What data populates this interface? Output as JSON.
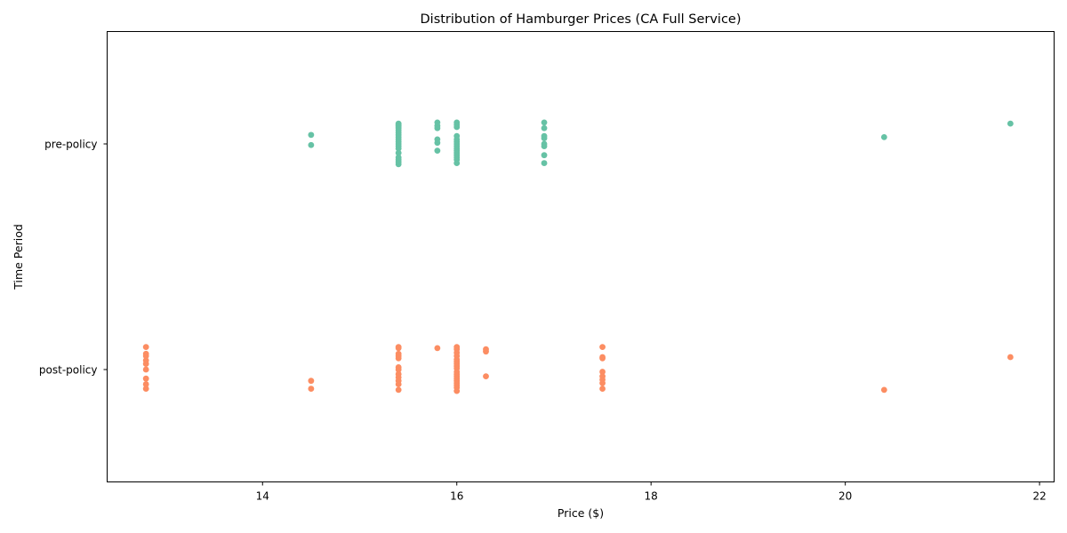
{
  "chart_data": {
    "type": "scatter",
    "title": "Distribution of Hamburger Prices (CA Full Service)",
    "xlabel": "Price ($)",
    "ylabel": "Time Period",
    "xlim": [
      12.4,
      22.15
    ],
    "xticks": [
      14,
      16,
      18,
      20,
      22
    ],
    "categories": [
      "pre-policy",
      "post-policy"
    ],
    "grid": false,
    "legend": "none",
    "series": [
      {
        "category": "pre-policy",
        "color": "#66c2a5",
        "points": [
          {
            "x": 14.5,
            "jitter": 0.04
          },
          {
            "x": 14.5,
            "jitter": -0.005
          },
          {
            "x": 15.4,
            "jitter": 0.09
          },
          {
            "x": 15.4,
            "jitter": 0.085
          },
          {
            "x": 15.4,
            "jitter": 0.08
          },
          {
            "x": 15.4,
            "jitter": 0.075
          },
          {
            "x": 15.4,
            "jitter": 0.07
          },
          {
            "x": 15.4,
            "jitter": 0.06
          },
          {
            "x": 15.4,
            "jitter": 0.05
          },
          {
            "x": 15.4,
            "jitter": 0.04
          },
          {
            "x": 15.4,
            "jitter": 0.03
          },
          {
            "x": 15.4,
            "jitter": 0.02
          },
          {
            "x": 15.4,
            "jitter": 0.01
          },
          {
            "x": 15.4,
            "jitter": 0.0
          },
          {
            "x": 15.4,
            "jitter": -0.01
          },
          {
            "x": 15.4,
            "jitter": -0.02
          },
          {
            "x": 15.4,
            "jitter": -0.04
          },
          {
            "x": 15.4,
            "jitter": -0.06
          },
          {
            "x": 15.4,
            "jitter": -0.07
          },
          {
            "x": 15.4,
            "jitter": -0.08
          },
          {
            "x": 15.4,
            "jitter": -0.09
          },
          {
            "x": 15.8,
            "jitter": 0.095
          },
          {
            "x": 15.8,
            "jitter": 0.08
          },
          {
            "x": 15.8,
            "jitter": 0.07
          },
          {
            "x": 15.8,
            "jitter": 0.02
          },
          {
            "x": 15.8,
            "jitter": 0.005
          },
          {
            "x": 15.8,
            "jitter": -0.03
          },
          {
            "x": 16.0,
            "jitter": 0.095
          },
          {
            "x": 16.0,
            "jitter": 0.085
          },
          {
            "x": 16.0,
            "jitter": 0.075
          },
          {
            "x": 16.0,
            "jitter": 0.035
          },
          {
            "x": 16.0,
            "jitter": 0.02
          },
          {
            "x": 16.0,
            "jitter": 0.01
          },
          {
            "x": 16.0,
            "jitter": 0.0
          },
          {
            "x": 16.0,
            "jitter": -0.01
          },
          {
            "x": 16.0,
            "jitter": -0.02
          },
          {
            "x": 16.0,
            "jitter": -0.03
          },
          {
            "x": 16.0,
            "jitter": -0.04
          },
          {
            "x": 16.0,
            "jitter": -0.05
          },
          {
            "x": 16.0,
            "jitter": -0.06
          },
          {
            "x": 16.0,
            "jitter": -0.07
          },
          {
            "x": 16.0,
            "jitter": -0.085
          },
          {
            "x": 16.9,
            "jitter": 0.095
          },
          {
            "x": 16.9,
            "jitter": 0.07
          },
          {
            "x": 16.9,
            "jitter": 0.035
          },
          {
            "x": 16.9,
            "jitter": 0.025
          },
          {
            "x": 16.9,
            "jitter": 0.0
          },
          {
            "x": 16.9,
            "jitter": -0.01
          },
          {
            "x": 16.9,
            "jitter": -0.05
          },
          {
            "x": 16.9,
            "jitter": -0.085
          },
          {
            "x": 20.4,
            "jitter": 0.03
          },
          {
            "x": 21.7,
            "jitter": 0.09
          }
        ]
      },
      {
        "category": "post-policy",
        "color": "#fc8d62",
        "points": [
          {
            "x": 12.8,
            "jitter": 0.1
          },
          {
            "x": 12.8,
            "jitter": 0.07
          },
          {
            "x": 12.8,
            "jitter": 0.06
          },
          {
            "x": 12.8,
            "jitter": 0.04
          },
          {
            "x": 12.8,
            "jitter": 0.025
          },
          {
            "x": 12.8,
            "jitter": 0.0
          },
          {
            "x": 12.8,
            "jitter": -0.04
          },
          {
            "x": 12.8,
            "jitter": -0.065
          },
          {
            "x": 12.8,
            "jitter": -0.085
          },
          {
            "x": 14.5,
            "jitter": -0.05
          },
          {
            "x": 14.5,
            "jitter": -0.085
          },
          {
            "x": 15.4,
            "jitter": 0.1
          },
          {
            "x": 15.4,
            "jitter": 0.095
          },
          {
            "x": 15.4,
            "jitter": 0.07
          },
          {
            "x": 15.4,
            "jitter": 0.06
          },
          {
            "x": 15.4,
            "jitter": 0.05
          },
          {
            "x": 15.4,
            "jitter": 0.01
          },
          {
            "x": 15.4,
            "jitter": 0.0
          },
          {
            "x": 15.4,
            "jitter": -0.02
          },
          {
            "x": 15.4,
            "jitter": -0.035
          },
          {
            "x": 15.4,
            "jitter": -0.05
          },
          {
            "x": 15.4,
            "jitter": -0.065
          },
          {
            "x": 15.4,
            "jitter": -0.09
          },
          {
            "x": 15.8,
            "jitter": 0.095
          },
          {
            "x": 16.0,
            "jitter": 0.1
          },
          {
            "x": 16.0,
            "jitter": 0.09
          },
          {
            "x": 16.0,
            "jitter": 0.075
          },
          {
            "x": 16.0,
            "jitter": 0.06
          },
          {
            "x": 16.0,
            "jitter": 0.045
          },
          {
            "x": 16.0,
            "jitter": 0.035
          },
          {
            "x": 16.0,
            "jitter": 0.025
          },
          {
            "x": 16.0,
            "jitter": 0.015
          },
          {
            "x": 16.0,
            "jitter": 0.005
          },
          {
            "x": 16.0,
            "jitter": -0.01
          },
          {
            "x": 16.0,
            "jitter": -0.02
          },
          {
            "x": 16.0,
            "jitter": -0.03
          },
          {
            "x": 16.0,
            "jitter": -0.04
          },
          {
            "x": 16.0,
            "jitter": -0.05
          },
          {
            "x": 16.0,
            "jitter": -0.06
          },
          {
            "x": 16.0,
            "jitter": -0.07
          },
          {
            "x": 16.0,
            "jitter": -0.08
          },
          {
            "x": 16.0,
            "jitter": -0.095
          },
          {
            "x": 16.3,
            "jitter": 0.09
          },
          {
            "x": 16.3,
            "jitter": 0.08
          },
          {
            "x": 16.3,
            "jitter": -0.03
          },
          {
            "x": 17.5,
            "jitter": 0.1
          },
          {
            "x": 17.5,
            "jitter": 0.055
          },
          {
            "x": 17.5,
            "jitter": 0.05
          },
          {
            "x": 17.5,
            "jitter": -0.01
          },
          {
            "x": 17.5,
            "jitter": -0.03
          },
          {
            "x": 17.5,
            "jitter": -0.045
          },
          {
            "x": 17.5,
            "jitter": -0.06
          },
          {
            "x": 17.5,
            "jitter": -0.085
          },
          {
            "x": 20.4,
            "jitter": -0.09
          },
          {
            "x": 21.7,
            "jitter": 0.055
          }
        ]
      }
    ]
  }
}
